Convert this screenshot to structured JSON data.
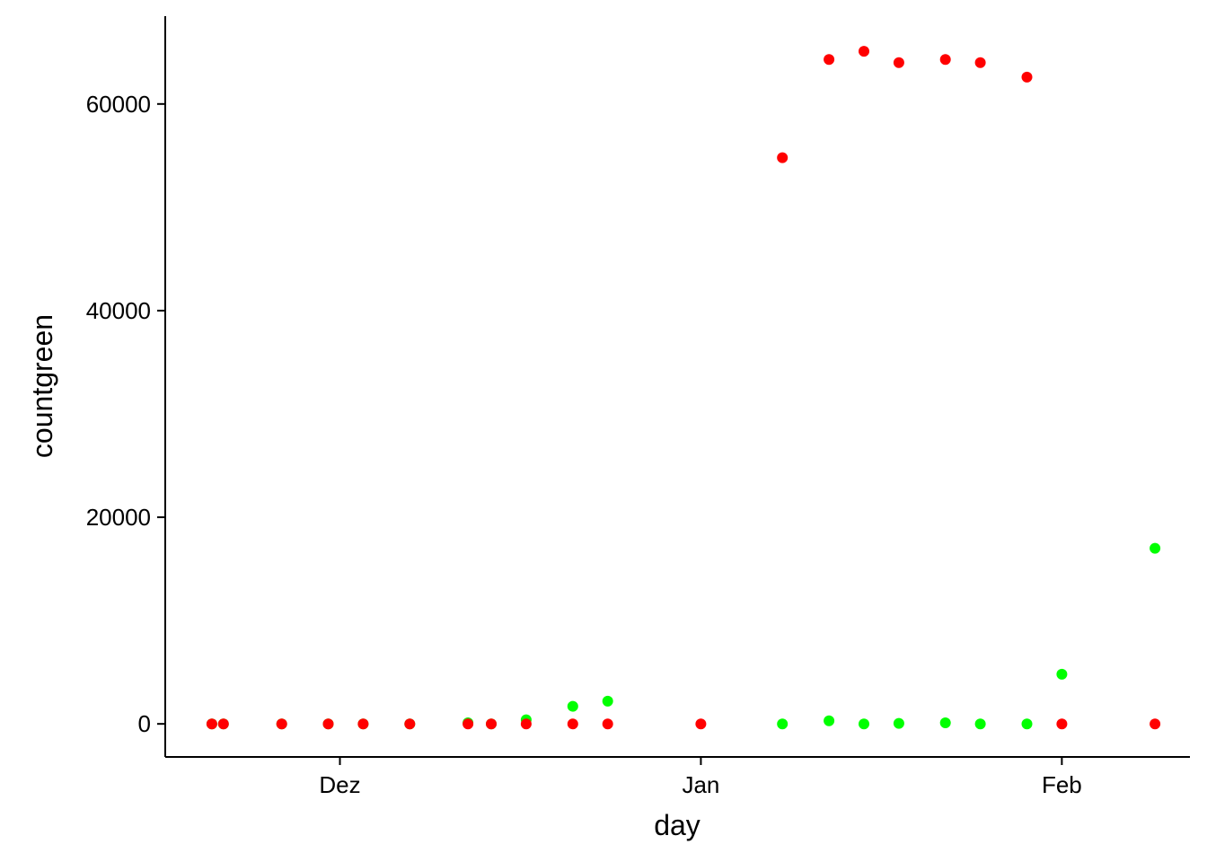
{
  "chart_data": {
    "type": "scatter",
    "title": "",
    "xlabel": "day",
    "ylabel": "countgreen",
    "x_axis_type": "date",
    "xlim": [
      "2019-11-16",
      "2020-02-12"
    ],
    "ylim": [
      -3200,
      68500
    ],
    "x_ticks": [
      {
        "date": "2019-12-01",
        "label": "Dez"
      },
      {
        "date": "2020-01-01",
        "label": "Jan"
      },
      {
        "date": "2020-02-01",
        "label": "Feb"
      }
    ],
    "y_ticks": [
      {
        "value": 0,
        "label": "0"
      },
      {
        "value": 20000,
        "label": "20000"
      },
      {
        "value": 40000,
        "label": "40000"
      },
      {
        "value": 60000,
        "label": "60000"
      }
    ],
    "grid": false,
    "legend": "none",
    "series": [
      {
        "color": "#00ff00",
        "points": [
          {
            "x": "2019-11-20",
            "y": 0
          },
          {
            "x": "2019-11-21",
            "y": 0
          },
          {
            "x": "2019-11-26",
            "y": 0
          },
          {
            "x": "2019-11-30",
            "y": 0
          },
          {
            "x": "2019-12-03",
            "y": 0
          },
          {
            "x": "2019-12-07",
            "y": 0
          },
          {
            "x": "2019-12-12",
            "y": 100
          },
          {
            "x": "2019-12-14",
            "y": 0
          },
          {
            "x": "2019-12-17",
            "y": 400
          },
          {
            "x": "2019-12-21",
            "y": 1700
          },
          {
            "x": "2019-12-24",
            "y": 2200
          },
          {
            "x": "2020-01-08",
            "y": 0
          },
          {
            "x": "2020-01-12",
            "y": 300
          },
          {
            "x": "2020-01-15",
            "y": 0
          },
          {
            "x": "2020-01-18",
            "y": 50
          },
          {
            "x": "2020-01-22",
            "y": 100
          },
          {
            "x": "2020-01-25",
            "y": 0
          },
          {
            "x": "2020-01-29",
            "y": 0
          },
          {
            "x": "2020-02-01",
            "y": 4800
          },
          {
            "x": "2020-02-09",
            "y": 17000
          }
        ]
      },
      {
        "color": "#ff0000",
        "points": [
          {
            "x": "2019-11-20",
            "y": 0
          },
          {
            "x": "2019-11-21",
            "y": 0
          },
          {
            "x": "2019-11-26",
            "y": 0
          },
          {
            "x": "2019-11-30",
            "y": 0
          },
          {
            "x": "2019-12-03",
            "y": 0
          },
          {
            "x": "2019-12-07",
            "y": 0
          },
          {
            "x": "2019-12-12",
            "y": 0
          },
          {
            "x": "2019-12-14",
            "y": 0
          },
          {
            "x": "2019-12-17",
            "y": 0
          },
          {
            "x": "2019-12-21",
            "y": 0
          },
          {
            "x": "2019-12-24",
            "y": 0
          },
          {
            "x": "2020-01-01",
            "y": 0
          },
          {
            "x": "2020-01-08",
            "y": 54800
          },
          {
            "x": "2020-01-12",
            "y": 64300
          },
          {
            "x": "2020-01-15",
            "y": 65100
          },
          {
            "x": "2020-01-18",
            "y": 64000
          },
          {
            "x": "2020-01-22",
            "y": 64300
          },
          {
            "x": "2020-01-25",
            "y": 64000
          },
          {
            "x": "2020-01-29",
            "y": 62600
          },
          {
            "x": "2020-02-01",
            "y": 0
          },
          {
            "x": "2020-02-09",
            "y": 0
          }
        ]
      }
    ]
  }
}
